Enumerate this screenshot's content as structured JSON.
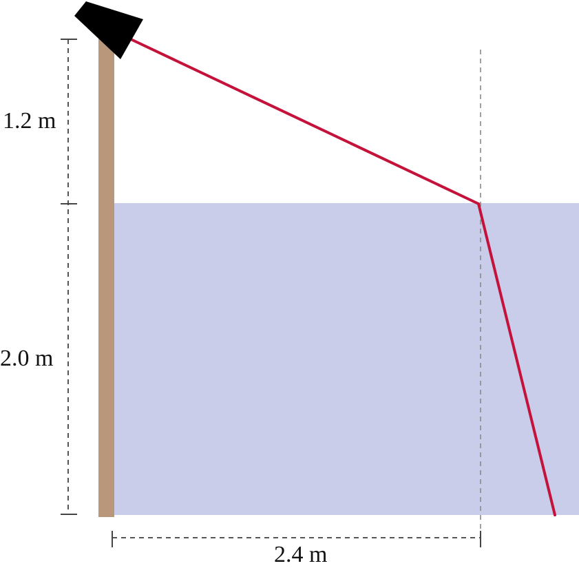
{
  "diagram": {
    "labels": {
      "light_height": "1.2 m",
      "water_depth": "2.0 m",
      "horizontal_distance": "2.4 m"
    },
    "colors": {
      "water": "#c9cde9",
      "pole": "#b8977a",
      "lamp": "#000000",
      "light_ray": "#c4123a",
      "dimension_lines": "#555555"
    },
    "icons": {
      "lamp": "flashlight-icon"
    }
  }
}
